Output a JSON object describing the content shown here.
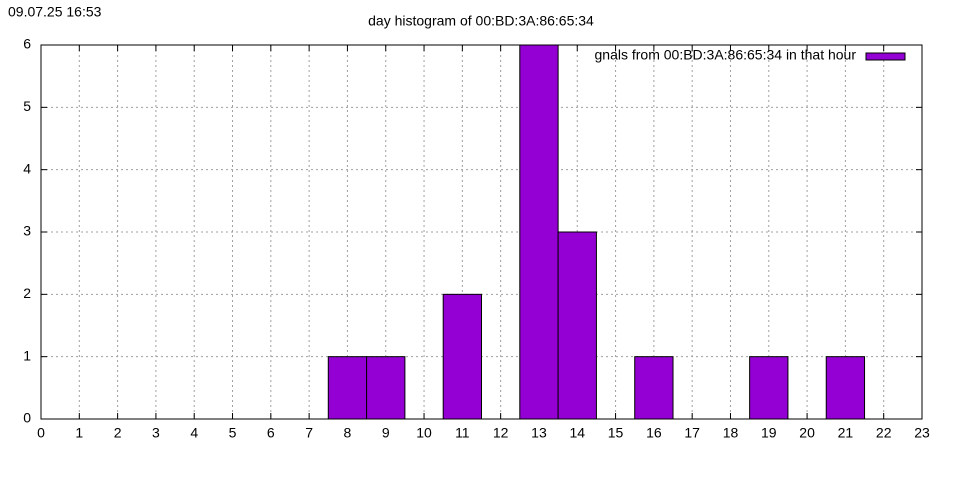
{
  "chart_data": {
    "type": "bar",
    "timestamp": "09.07.25 16:53",
    "title": "day histogram of 00:BD:3A:86:65:34",
    "x": [
      8,
      9,
      11,
      13,
      14,
      16,
      19,
      21
    ],
    "series": [
      {
        "name": "gnals from 00:BD:3A:86:65:34 in that hour",
        "color": "#9400d3",
        "values": [
          1,
          1,
          2,
          6,
          3,
          1,
          1,
          1
        ]
      }
    ],
    "xlim": [
      0,
      23
    ],
    "xticks": [
      0,
      1,
      2,
      3,
      4,
      5,
      6,
      7,
      8,
      9,
      10,
      11,
      12,
      13,
      14,
      15,
      16,
      17,
      18,
      19,
      20,
      21,
      22,
      23
    ],
    "ylim": [
      0,
      6
    ],
    "yticks": [
      0,
      1,
      2,
      3,
      4,
      5,
      6
    ],
    "grid": true,
    "legend": "top-right"
  }
}
